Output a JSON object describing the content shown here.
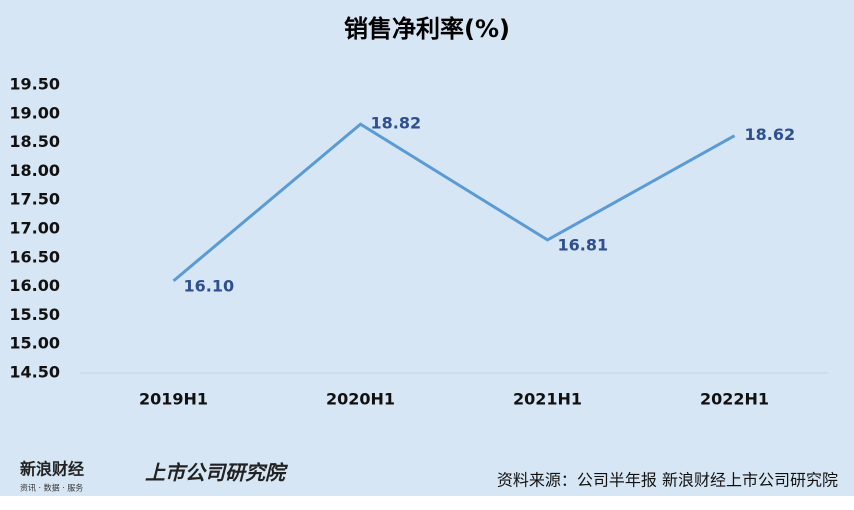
{
  "chart_data": {
    "type": "line",
    "title": "销售净利率(%)",
    "categories": [
      "2019H1",
      "2020H1",
      "2021H1",
      "2022H1"
    ],
    "series": [
      {
        "name": "销售净利率",
        "color": "#5b9bd5",
        "values": [
          16.1,
          18.82,
          16.81,
          18.62
        ],
        "value_labels": [
          "16.10",
          "18.82",
          "16.81",
          "18.62"
        ]
      }
    ],
    "ylim": [
      14.5,
      19.5
    ],
    "yticks": [
      {
        "value": 14.5,
        "label": "14.50"
      },
      {
        "value": 15,
        "label": "15.00"
      },
      {
        "value": 15.5,
        "label": "15.50"
      },
      {
        "value": 16,
        "label": "16.00"
      },
      {
        "value": 16.5,
        "label": "16.50"
      },
      {
        "value": 17,
        "label": "17.00"
      },
      {
        "value": 17.5,
        "label": "17.50"
      },
      {
        "value": 18,
        "label": "18.00"
      },
      {
        "value": 18.5,
        "label": "18.50"
      },
      {
        "value": 19,
        "label": "19.00"
      },
      {
        "value": 19.5,
        "label": "19.50"
      }
    ],
    "grid": false
  },
  "footer": {
    "logo": "新浪财经",
    "logo_sub": "资讯 · 数据 · 服务",
    "institute": "上市公司研究院",
    "source": "资料来源：公司半年报 新浪财经上市公司研究院"
  }
}
